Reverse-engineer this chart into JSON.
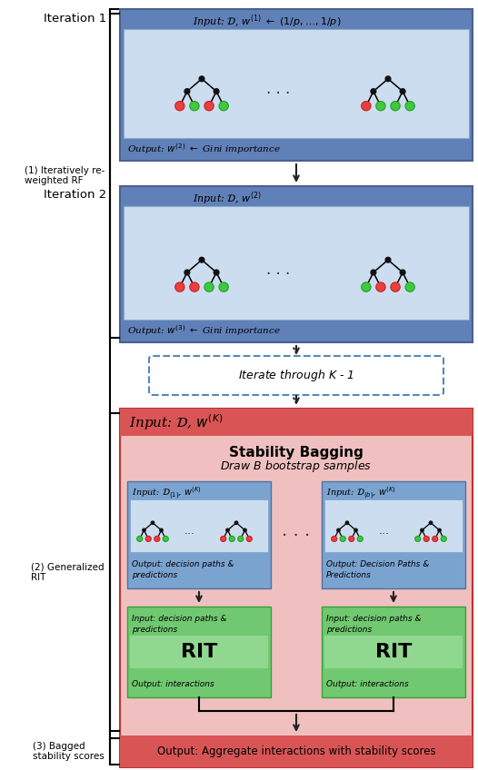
{
  "fig_width": 5.26,
  "fig_height": 8.48,
  "dpi": 100,
  "blue_dark": "#6080b8",
  "blue_mid": "#7ba3d0",
  "blue_light": "#afc8e8",
  "blue_lighter": "#ccddf0",
  "red_dark": "#d95555",
  "pink_bg": "#f0c0c0",
  "green_box": "#70c870",
  "green_light": "#90d890",
  "label1": "(1) Iteratively re-\nweighted RF",
  "label2": "(2) Generalized\nRIT",
  "label3": "(3) Bagged\nstability scores"
}
